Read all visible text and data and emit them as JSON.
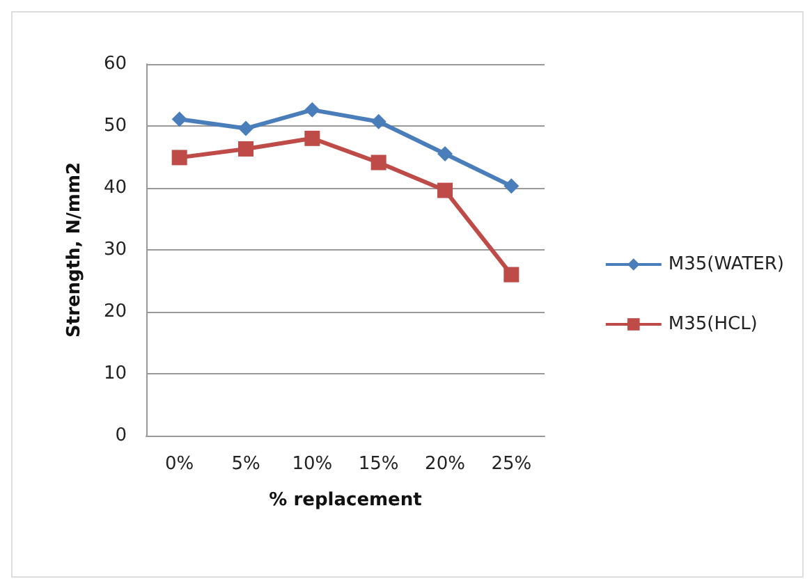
{
  "chart_data": {
    "type": "line",
    "xlabel": "% replacement",
    "ylabel": "Strength, N/mm2",
    "categories": [
      "0%",
      "5%",
      "10%",
      "15%",
      "20%",
      "25%"
    ],
    "series": [
      {
        "name": "M35(WATER)",
        "color": "#4a7ebb",
        "marker": "diamond",
        "values": [
          51.1,
          49.6,
          52.6,
          50.7,
          45.5,
          40.3
        ]
      },
      {
        "name": "M35(HCL)",
        "color": "#be4b48",
        "marker": "square",
        "values": [
          44.9,
          46.3,
          48.0,
          44.1,
          39.6,
          26.0
        ]
      }
    ],
    "ylim": [
      0,
      60
    ],
    "yticks": [
      0,
      10,
      20,
      30,
      40,
      50,
      60
    ],
    "grid": "y",
    "legend": "right"
  }
}
